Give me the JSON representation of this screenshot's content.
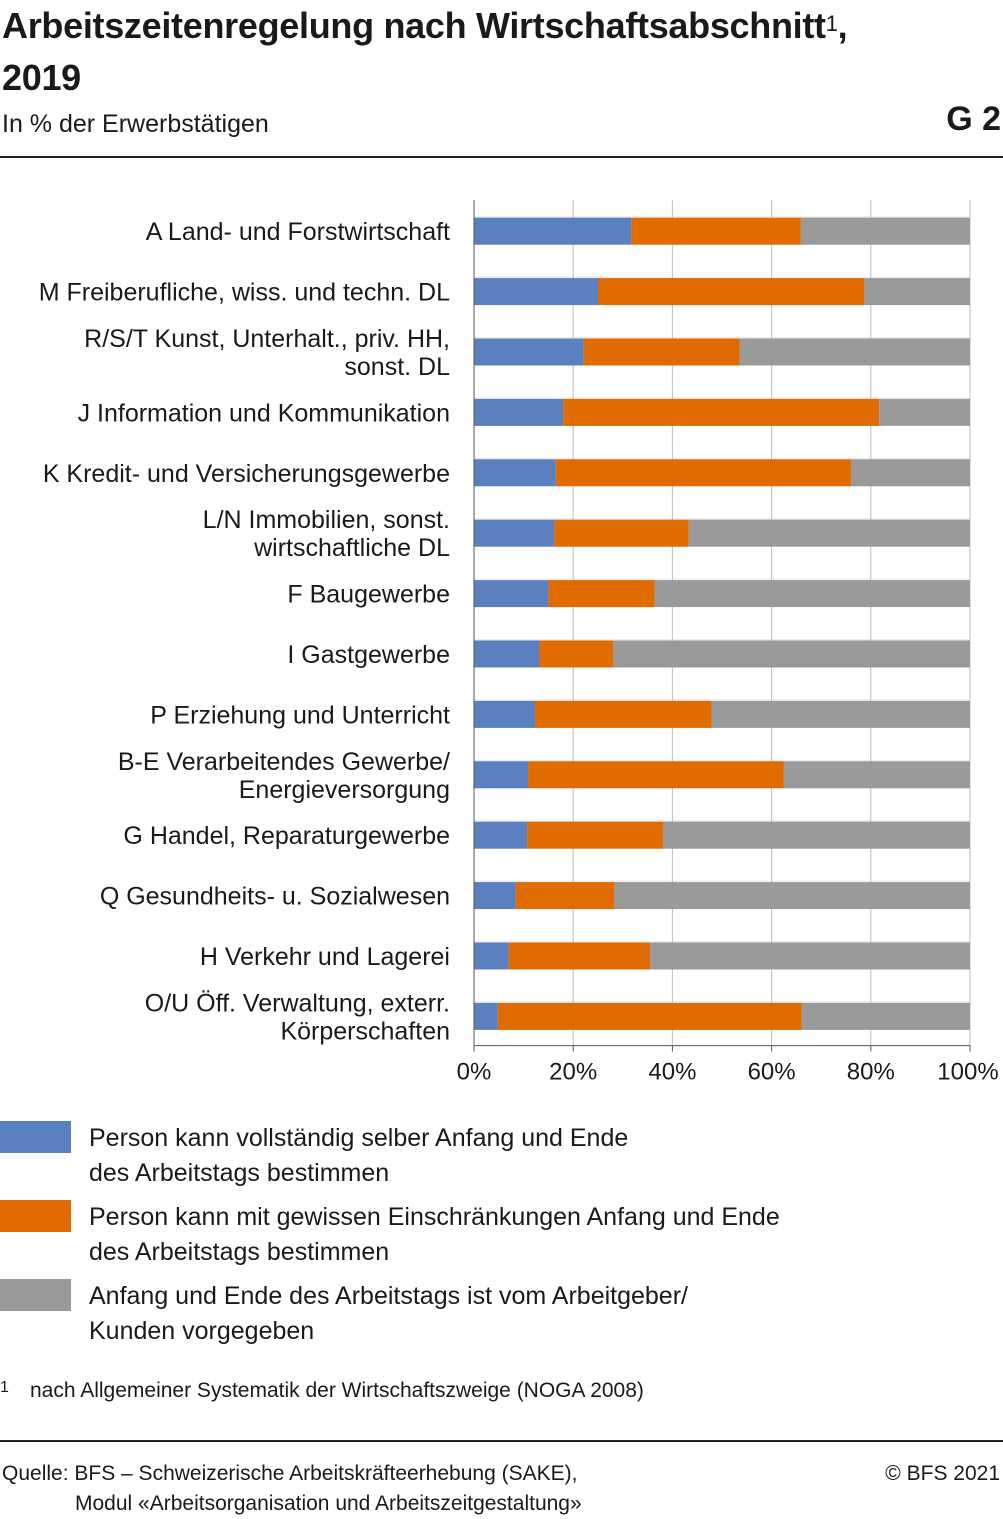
{
  "header": {
    "title_main": "Arbeitszeitenregelung nach Wirtschaftsabschnitt",
    "title_sup": "1",
    "title_tail": ",",
    "title_year": "2019",
    "subtitle": "In % der Erwerbstätigen",
    "code": "G 2"
  },
  "chart_data": {
    "type": "bar",
    "orientation": "horizontal",
    "stacked": true,
    "categories": [
      [
        "A Land- und Forstwirtschaft"
      ],
      [
        "M Freiberufliche, wiss. und techn. DL"
      ],
      [
        "R/S/T Kunst, Unterhalt., priv. HH,",
        "sonst. DL"
      ],
      [
        "J Information und Kommunikation"
      ],
      [
        "K Kredit- und Versicherungsgewerbe"
      ],
      [
        "L/N Immobilien, sonst.",
        "wirtschaftliche DL"
      ],
      [
        "F Baugewerbe"
      ],
      [
        "I Gastgewerbe"
      ],
      [
        "P Erziehung und Unterricht"
      ],
      [
        "B-E Verarbeitendes Gewerbe/",
        "Energieversorgung"
      ],
      [
        "G Handel, Reparaturgewerbe"
      ],
      [
        "Q Gesundheits- u. Sozialwesen"
      ],
      [
        "H Verkehr und Lagerei"
      ],
      [
        "O/U Öff. Verwaltung, exterr.",
        "Körperschaften"
      ]
    ],
    "series": [
      {
        "key": "full",
        "color": "#5b80c0",
        "values": [
          31.7,
          25.0,
          22.1,
          18.0,
          16.5,
          16.2,
          15.0,
          13.2,
          12.3,
          10.9,
          10.7,
          8.4,
          7.0,
          4.8
        ]
      },
      {
        "key": "partial",
        "color": "#e06c00",
        "values": [
          34.2,
          53.7,
          31.5,
          63.7,
          59.5,
          27.1,
          21.4,
          14.9,
          35.6,
          51.5,
          27.4,
          19.9,
          28.5,
          61.3
        ]
      },
      {
        "key": "employer",
        "color": "#9a9a9a",
        "values": [
          34.1,
          21.3,
          46.4,
          18.3,
          24.0,
          56.7,
          63.6,
          71.9,
          52.1,
          37.6,
          61.9,
          71.7,
          64.5,
          33.9
        ]
      }
    ],
    "x_ticks": [
      "0%",
      "20%",
      "40%",
      "60%",
      "80%",
      "100%"
    ],
    "xlim": [
      0,
      100
    ],
    "grid": true,
    "band_color": "#ebebeb"
  },
  "legend": {
    "items": [
      {
        "color": "#5b80c0",
        "line1": "Person kann vollständig selber Anfang und Ende",
        "line2": "des Arbeitstags bestimmen"
      },
      {
        "color": "#e06c00",
        "line1": "Person kann mit gewissen Einschränkungen Anfang und Ende",
        "line2": "des Arbeitstags bestimmen"
      },
      {
        "color": "#9a9a9a",
        "line1": "Anfang und Ende des Arbeitstags ist vom Arbeitgeber/",
        "line2": "Kunden vorgegeben"
      }
    ]
  },
  "footnote": {
    "number": "1",
    "text": "nach Allgemeiner Systematik der Wirtschaftszweige (NOGA 2008)"
  },
  "footer": {
    "source_line1": "Quelle: BFS – Schweizerische Arbeitskräfteerhebung (SAKE),",
    "source_line2": "Modul «Arbeitsorganisation und Arbeitszeitgestaltung»",
    "copyright": "© BFS 2021"
  }
}
